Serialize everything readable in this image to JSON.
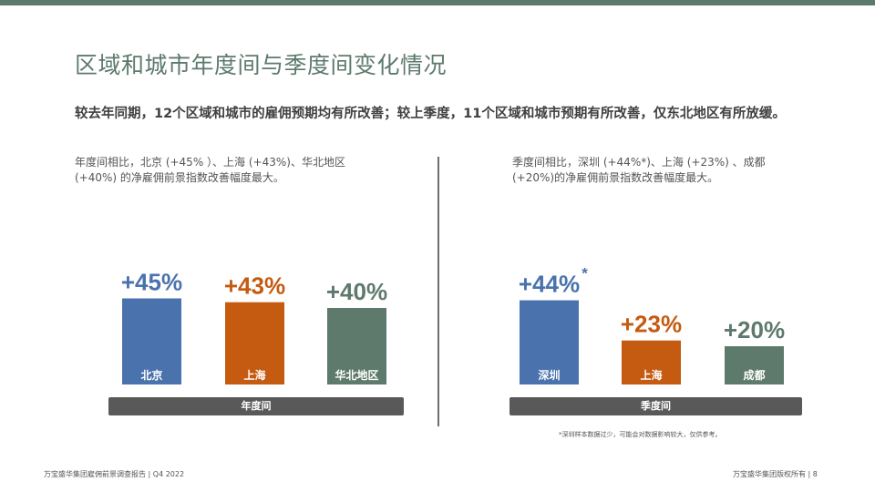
{
  "page": {
    "title": "区域和城市年度间与季度间变化情况",
    "summary": "较去年同期，12个区域和城市的雇佣预期均有所改善；较上季度，11个区域和城市预期有所改善，仅东北地区有所放缓。",
    "left_description": "年度间相比，北京 (+45% ）、上海 (+43%)、华北地区 (+40%) 的净雇佣前景指数改善幅度最大。",
    "right_description": "季度间相比，深圳 (+44%*)、上海 (+23%) 、成都 (+20%)的净雇佣前景指数改善幅度最大。",
    "footnote": "*深圳样本数据过少，可能会对数据影响较大，仅供参考。",
    "footer_left": "万宝盛华集团雇佣前景调查报告 | Q4 2022",
    "footer_right": "万宝盛华集团版权所有 | 8"
  },
  "colors": {
    "blue": "#4a72ac",
    "orange": "#c55a11",
    "green": "#5d7a6c",
    "axis_bar": "#595959"
  },
  "chart_data": [
    {
      "type": "bar",
      "axis_label": "年度间",
      "categories": [
        "北京",
        "上海",
        "华北地区"
      ],
      "values": [
        45,
        43,
        40
      ],
      "value_labels": [
        "+45%",
        "+43%",
        "+40%"
      ],
      "colors": [
        "blue",
        "orange",
        "green"
      ],
      "asterisk": [
        false,
        false,
        false
      ],
      "ylim": [
        0,
        50
      ]
    },
    {
      "type": "bar",
      "axis_label": "季度间",
      "categories": [
        "深圳",
        "上海",
        "成都"
      ],
      "values": [
        44,
        23,
        20
      ],
      "value_labels": [
        "+44%",
        "+23%",
        "+20%"
      ],
      "colors": [
        "blue",
        "orange",
        "green"
      ],
      "asterisk": [
        true,
        false,
        false
      ],
      "ylim": [
        0,
        50
      ]
    }
  ]
}
